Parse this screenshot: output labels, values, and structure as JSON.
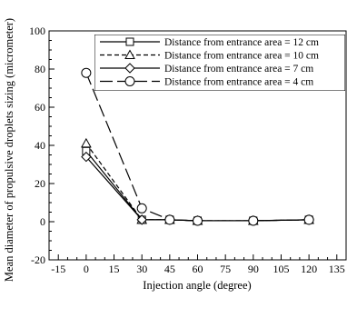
{
  "chart_data": {
    "type": "line",
    "title": "",
    "xlabel": "Injection angle (degree)",
    "ylabel": "Mean diameter of propulsive droplets sizing (micrometer)",
    "xlim": [
      -20,
      140
    ],
    "ylim": [
      -20,
      100
    ],
    "xticks": [
      -15,
      0,
      15,
      30,
      45,
      60,
      75,
      90,
      105,
      120,
      135
    ],
    "yticks": [
      -20,
      0,
      20,
      40,
      60,
      80,
      100
    ],
    "grid": false,
    "legend_position": "top-right",
    "series": [
      {
        "name": "Distance from entrance area = 12 cm",
        "marker": "square",
        "line_style": "solid",
        "x": [
          0,
          30,
          45,
          60,
          90,
          120
        ],
        "y": [
          37,
          1,
          1,
          0.5,
          0.5,
          1
        ]
      },
      {
        "name": "Distance from entrance area = 10 cm",
        "marker": "triangle",
        "line_style": "dashed",
        "x": [
          0,
          30,
          45,
          60,
          90,
          120
        ],
        "y": [
          41,
          1,
          1,
          0.5,
          0.5,
          1
        ]
      },
      {
        "name": "Distance from entrance area = 7 cm",
        "marker": "diamond",
        "line_style": "solid",
        "x": [
          0,
          30,
          45,
          60,
          90,
          120
        ],
        "y": [
          34,
          1,
          1,
          0.5,
          0.5,
          1
        ]
      },
      {
        "name": "Distance from entrance area = 4 cm",
        "marker": "circle",
        "line_style": "long-dash",
        "x": [
          0,
          30,
          45,
          60,
          90,
          120
        ],
        "y": [
          78,
          7,
          1,
          0.5,
          0.5,
          1
        ]
      }
    ]
  }
}
